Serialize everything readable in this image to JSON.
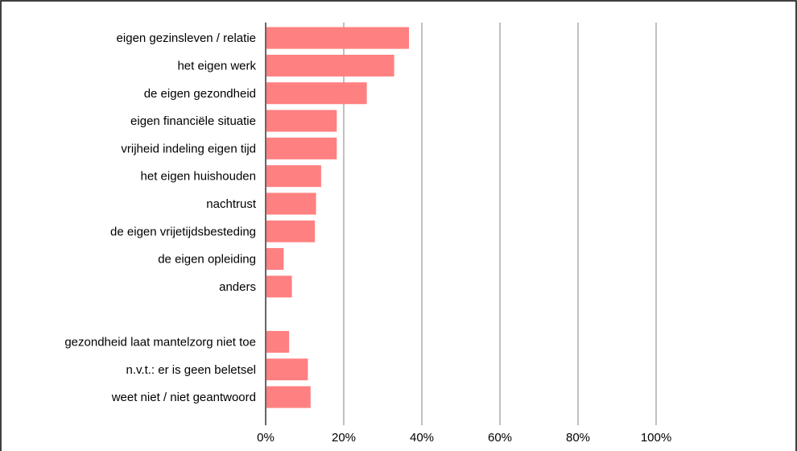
{
  "chart_data": {
    "type": "bar",
    "orientation": "horizontal",
    "categories": [
      "eigen gezinsleven / relatie",
      "het eigen werk",
      "de eigen gezondheid",
      "eigen financiële situatie",
      "vrijheid indeling eigen tijd",
      "het eigen huishouden",
      "nachtrust",
      "de eigen vrijetijdsbesteding",
      "de eigen opleiding",
      "anders",
      "",
      "gezondheid laat mantelzorg niet toe",
      "n.v.t.: er is geen beletsel",
      "weet niet / niet geantwoord"
    ],
    "values": [
      36.5,
      32.7,
      25.7,
      18.0,
      18.0,
      14.0,
      12.7,
      12.4,
      4.4,
      6.5,
      null,
      5.8,
      10.6,
      11.3
    ],
    "xlim": [
      0,
      100
    ],
    "xticks": [
      0,
      20,
      40,
      60,
      80,
      100
    ],
    "xtick_labels": [
      "0%",
      "20%",
      "40%",
      "60%",
      "80%",
      "100%"
    ],
    "title": "",
    "xlabel": "",
    "ylabel": "",
    "grid": "vertical",
    "legend": "none",
    "colors": {
      "bar": "#ff8080",
      "grid": "#808080",
      "border": "#000000",
      "text": "#000000"
    }
  }
}
